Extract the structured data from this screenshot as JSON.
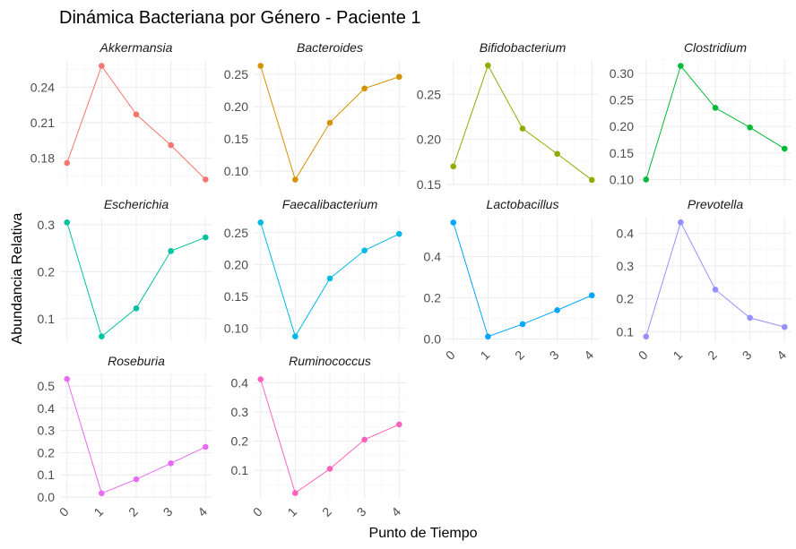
{
  "chart_data": {
    "type": "line",
    "title": "Dinámica Bacteriana por Género - Paciente 1",
    "xlabel": "Punto de Tiempo",
    "ylabel": "Abundancia Relativa",
    "x": [
      0,
      1,
      2,
      3,
      4
    ],
    "x_tick_labels": [
      "0",
      "1",
      "2",
      "3",
      "4"
    ],
    "grid": true,
    "legend": "none",
    "facets": [
      {
        "name": "Akkermansia",
        "color": "#F8766D",
        "values": [
          0.176,
          0.258,
          0.217,
          0.191,
          0.162
        ],
        "yticks": [
          0.18,
          0.21,
          0.24
        ],
        "ytick_labels": [
          "0.18",
          "0.21",
          "0.24"
        ],
        "ylim": [
          0.157,
          0.263
        ]
      },
      {
        "name": "Bacteroides",
        "color": "#D39200",
        "values": [
          0.263,
          0.087,
          0.175,
          0.228,
          0.246
        ],
        "yticks": [
          0.1,
          0.15,
          0.2,
          0.25
        ],
        "ytick_labels": [
          "0.10",
          "0.15",
          "0.20",
          "0.25"
        ],
        "ylim": [
          0.078,
          0.272
        ]
      },
      {
        "name": "Bifidobacterium",
        "color": "#93AA00",
        "values": [
          0.17,
          0.282,
          0.212,
          0.184,
          0.155
        ],
        "yticks": [
          0.15,
          0.2,
          0.25
        ],
        "ytick_labels": [
          "0.15",
          "0.20",
          "0.25"
        ],
        "ylim": [
          0.149,
          0.288
        ]
      },
      {
        "name": "Clostridium",
        "color": "#00BA38",
        "values": [
          0.1,
          0.314,
          0.235,
          0.198,
          0.158
        ],
        "yticks": [
          0.1,
          0.15,
          0.2,
          0.25,
          0.3
        ],
        "ytick_labels": [
          "0.10",
          "0.15",
          "0.20",
          "0.25",
          "0.30"
        ],
        "ylim": [
          0.089,
          0.325
        ]
      },
      {
        "name": "Escherichia",
        "color": "#00C19F",
        "values": [
          0.305,
          0.062,
          0.122,
          0.244,
          0.273
        ],
        "yticks": [
          0.1,
          0.2,
          0.3
        ],
        "ytick_labels": [
          "0.1",
          "0.2",
          "0.3"
        ],
        "ylim": [
          0.05,
          0.317
        ]
      },
      {
        "name": "Faecalibacterium",
        "color": "#00B9E3",
        "values": [
          0.266,
          0.087,
          0.178,
          0.222,
          0.248
        ],
        "yticks": [
          0.1,
          0.15,
          0.2,
          0.25
        ],
        "ytick_labels": [
          "0.10",
          "0.15",
          "0.20",
          "0.25"
        ],
        "ylim": [
          0.078,
          0.275
        ]
      },
      {
        "name": "Lactobacillus",
        "color": "#00A5FF",
        "values": [
          0.565,
          0.012,
          0.072,
          0.14,
          0.212
        ],
        "yticks": [
          0.0,
          0.2,
          0.4
        ],
        "ytick_labels": [
          "0.0",
          "0.2",
          "0.4"
        ],
        "ylim": [
          -0.015,
          0.593
        ]
      },
      {
        "name": "Prevotella",
        "color": "#9590FF",
        "values": [
          0.085,
          0.433,
          0.228,
          0.142,
          0.114
        ],
        "yticks": [
          0.1,
          0.2,
          0.3,
          0.4
        ],
        "ytick_labels": [
          "0.1",
          "0.2",
          "0.3",
          "0.4"
        ],
        "ylim": [
          0.068,
          0.45
        ]
      },
      {
        "name": "Roseburia",
        "color": "#E76BF3",
        "values": [
          0.532,
          0.017,
          0.08,
          0.152,
          0.226
        ],
        "yticks": [
          0.0,
          0.1,
          0.2,
          0.3,
          0.4,
          0.5
        ],
        "ytick_labels": [
          "0.0",
          "0.1",
          "0.2",
          "0.3",
          "0.4",
          "0.5"
        ],
        "ylim": [
          -0.008,
          0.557
        ]
      },
      {
        "name": "Ruminococcus",
        "color": "#FF62BC",
        "values": [
          0.412,
          0.022,
          0.105,
          0.205,
          0.257
        ],
        "yticks": [
          0.1,
          0.2,
          0.3,
          0.4
        ],
        "ytick_labels": [
          "0.1",
          "0.2",
          "0.3",
          "0.4"
        ],
        "ylim": [
          0.002,
          0.432
        ]
      }
    ]
  }
}
